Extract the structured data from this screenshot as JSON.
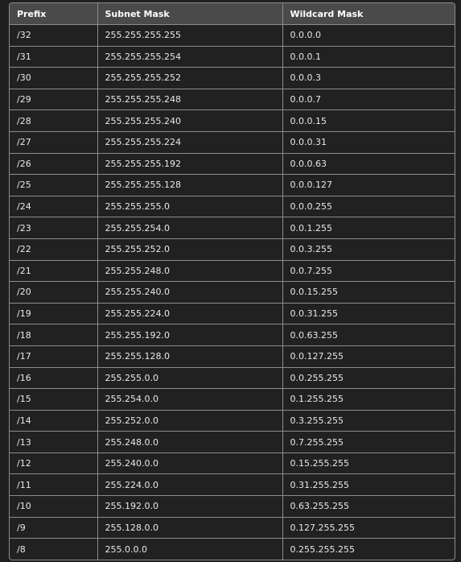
{
  "table": {
    "headers": [
      "Prefix",
      "Subnet Mask",
      "Wildcard Mask"
    ],
    "rows": [
      [
        "/32",
        "255.255.255.255",
        "0.0.0.0"
      ],
      [
        "/31",
        "255.255.255.254",
        "0.0.0.1"
      ],
      [
        "/30",
        "255.255.255.252",
        "0.0.0.3"
      ],
      [
        "/29",
        "255.255.255.248",
        "0.0.0.7"
      ],
      [
        "/28",
        "255.255.255.240",
        "0.0.0.15"
      ],
      [
        "/27",
        "255.255.255.224",
        "0.0.0.31"
      ],
      [
        "/26",
        "255.255.255.192",
        "0.0.0.63"
      ],
      [
        "/25",
        "255.255.255.128",
        "0.0.0.127"
      ],
      [
        "/24",
        "255.255.255.0",
        "0.0.0.255"
      ],
      [
        "/23",
        "255.255.254.0",
        "0.0.1.255"
      ],
      [
        "/22",
        "255.255.252.0",
        "0.0.3.255"
      ],
      [
        "/21",
        "255.255.248.0",
        "0.0.7.255"
      ],
      [
        "/20",
        "255.255.240.0",
        "0.0.15.255"
      ],
      [
        "/19",
        "255.255.224.0",
        "0.0.31.255"
      ],
      [
        "/18",
        "255.255.192.0",
        "0.0.63.255"
      ],
      [
        "/17",
        "255.255.128.0",
        "0.0.127.255"
      ],
      [
        "/16",
        "255.255.0.0",
        "0.0.255.255"
      ],
      [
        "/15",
        "255.254.0.0",
        "0.1.255.255"
      ],
      [
        "/14",
        "255.252.0.0",
        "0.3.255.255"
      ],
      [
        "/13",
        "255.248.0.0",
        "0.7.255.255"
      ],
      [
        "/12",
        "255.240.0.0",
        "0.15.255.255"
      ],
      [
        "/11",
        "255.224.0.0",
        "0.31.255.255"
      ],
      [
        "/10",
        "255.192.0.0",
        "0.63.255.255"
      ],
      [
        "/9",
        "255.128.0.0",
        "0.127.255.255"
      ],
      [
        "/8",
        "255.0.0.0",
        "0.255.255.255"
      ]
    ]
  }
}
